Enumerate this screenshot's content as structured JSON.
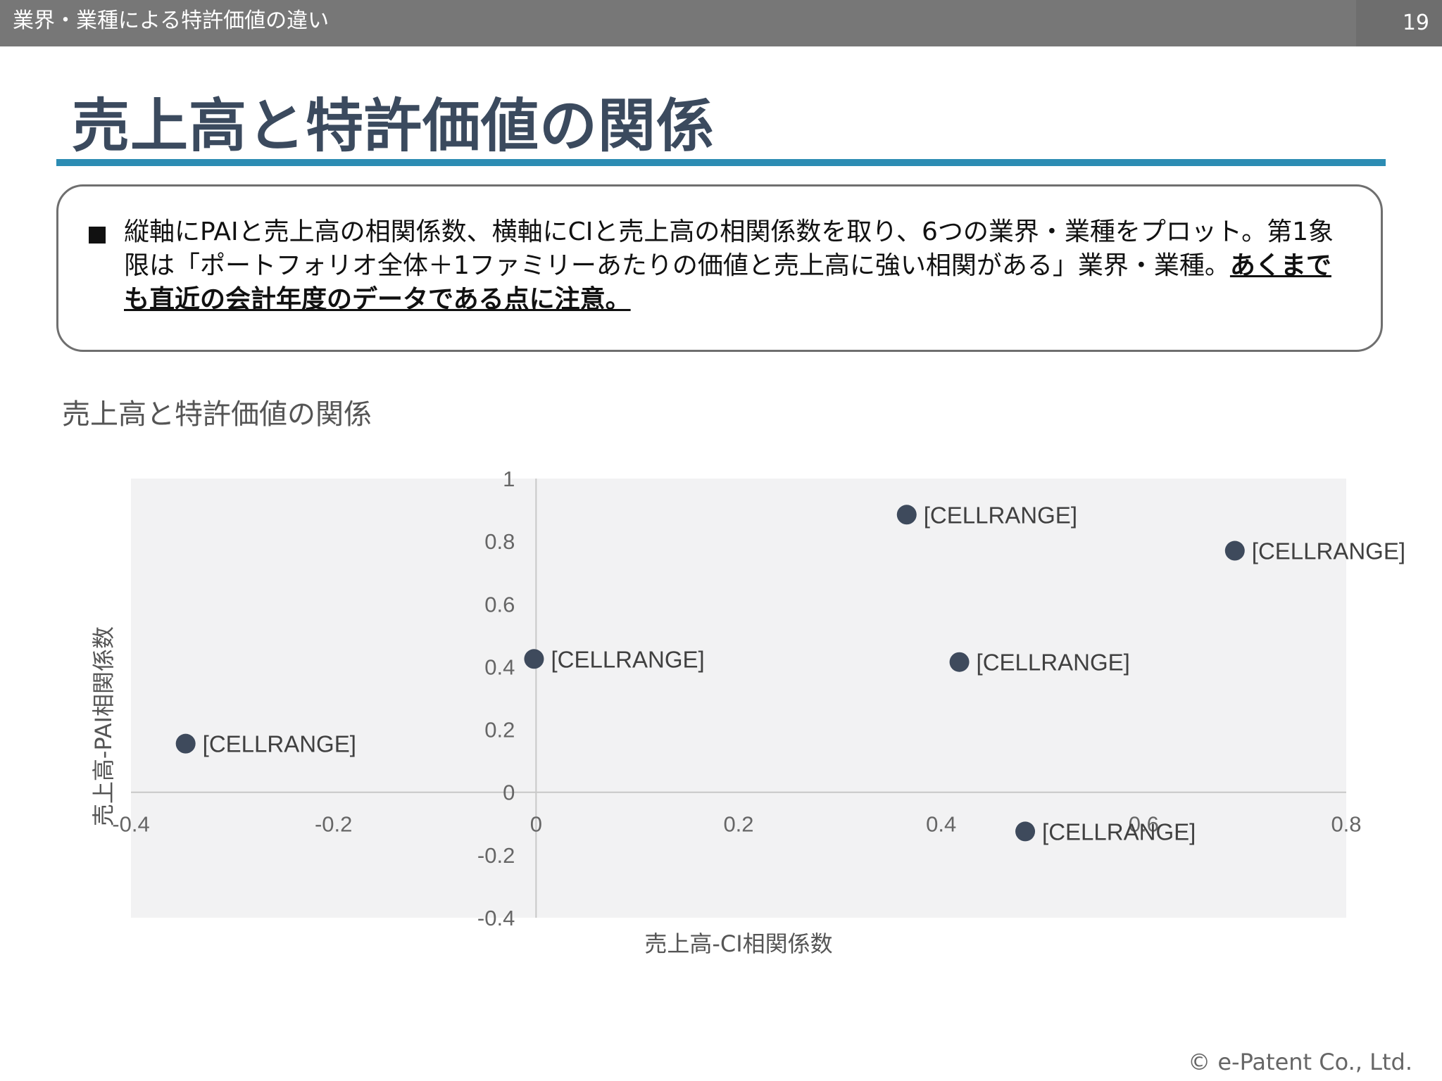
{
  "header": {
    "section_title": "業界・業種による特許価値の違い",
    "page_number": "19"
  },
  "main_title": "売上高と特許価値の関係",
  "note": {
    "text_plain": "縦軸にPAIと売上高の相関係数、横軸にCIと売上高の相関係数を取り、6つの業界・業種をプロット。第1象限は「ポートフォリオ全体＋1ファミリーあたりの価値と売上高に強い相関がある」業界・業種。",
    "text_emphasis": "あくまでも直近の会計年度のデータである点に注意。"
  },
  "chart_data": {
    "type": "scatter",
    "title": "売上高と特許価値の関係",
    "xlabel": "売上高-CI相関係数",
    "ylabel": "売上高-PAI相関係数",
    "xlim": [
      -0.4,
      0.8
    ],
    "ylim": [
      -0.4,
      1
    ],
    "x_ticks": [
      -0.4,
      -0.2,
      0,
      0.2,
      0.4,
      0.6,
      0.8
    ],
    "y_ticks": [
      -0.4,
      -0.2,
      0,
      0.2,
      0.4,
      0.6,
      0.8,
      1
    ],
    "x_tick_labels": [
      "-0.4",
      "-0.2",
      "0",
      "0.2",
      "0.4",
      "0.6",
      "0.8"
    ],
    "y_tick_labels": [
      "-0.4",
      "-0.2",
      "0",
      "0.2",
      "0.4",
      "0.6",
      "0.8",
      "1"
    ],
    "grid": false,
    "legend": "none",
    "marker_color": "#3e4a5c",
    "plot_background": "#f2f2f3",
    "points": [
      {
        "x": 0.366,
        "y": 0.885,
        "label": "[CELLRANGE]"
      },
      {
        "x": 0.69,
        "y": 0.77,
        "label": "[CELLRANGE]"
      },
      {
        "x": -0.002,
        "y": 0.425,
        "label": "[CELLRANGE]"
      },
      {
        "x": 0.418,
        "y": 0.415,
        "label": "[CELLRANGE]"
      },
      {
        "x": -0.346,
        "y": 0.155,
        "label": "[CELLRANGE]"
      },
      {
        "x": 0.483,
        "y": -0.125,
        "label": "[CELLRANGE]"
      }
    ]
  },
  "footer": {
    "copyright": "© e-Patent Co., Ltd."
  }
}
